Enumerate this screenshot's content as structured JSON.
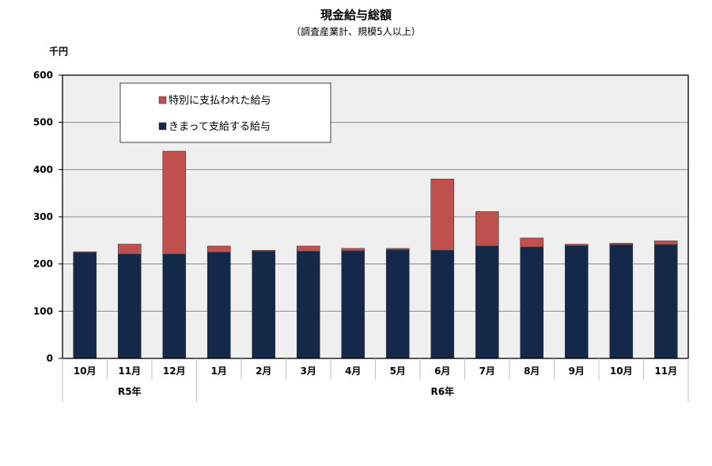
{
  "chart_data": {
    "type": "bar",
    "stacked": true,
    "title": "現金給与総額",
    "subtitle": "（調査産業計、規模5人以上）",
    "ylabel": "千円",
    "xlabel": "",
    "ylim": [
      0,
      600
    ],
    "yticks": [
      0,
      100,
      200,
      300,
      400,
      500,
      600
    ],
    "grid": true,
    "legend_position": "top-left",
    "categories": [
      "10月",
      "11月",
      "12月",
      "1月",
      "2月",
      "3月",
      "4月",
      "5月",
      "6月",
      "7月",
      "8月",
      "9月",
      "10月",
      "11月"
    ],
    "year_groups": [
      {
        "label": "R5年",
        "count": 3
      },
      {
        "label": "R6年",
        "count": 11
      }
    ],
    "series": [
      {
        "name": "きまって支給する給与",
        "color": "#14284a",
        "values": [
          224,
          221,
          221,
          225,
          227,
          227,
          228,
          230,
          229,
          238,
          236,
          239,
          241,
          241
        ]
      },
      {
        "name": "特別に支払われた給与",
        "color": "#c0504d",
        "values": [
          2,
          21,
          218,
          13,
          2,
          11,
          5,
          3,
          151,
          73,
          19,
          3,
          3,
          8
        ]
      }
    ],
    "legend_order": [
      1,
      0
    ],
    "colors": {
      "plot_background": "#efefef",
      "gridline": "#8c8c8c",
      "axis": "#000000"
    }
  }
}
